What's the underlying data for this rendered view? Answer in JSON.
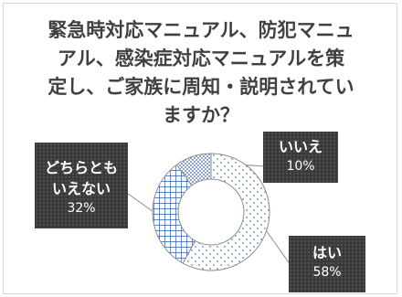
{
  "title_lines": [
    "緊急時対応マニュアル、防犯マニュ",
    "アル、感染症対応マニュアルを策",
    "定し、ご家族に周知・説明されてい",
    "ますか？"
  ],
  "chart_data": {
    "type": "pie",
    "variant": "doughnut",
    "title": "緊急時対応マニュアル、防犯マニュアル、感染症対応マニュアルを策定し、ご家族に周知・説明されていますか？",
    "categories": [
      "はい",
      "どちらともいえない",
      "いいえ"
    ],
    "values": [
      58,
      32,
      10
    ],
    "unit": "%",
    "start_angle_deg": 0,
    "direction": "clockwise",
    "slices": [
      {
        "label_lines": [
          "はい"
        ],
        "value": 58,
        "display": "58%",
        "pattern": "sparse-dots",
        "color": "#5b7fbf"
      },
      {
        "label_lines": [
          "どちらとも",
          "いえない"
        ],
        "value": 32,
        "display": "32%",
        "pattern": "grid",
        "color": "#2e5ea9"
      },
      {
        "label_lines": [
          "いいえ"
        ],
        "value": 10,
        "display": "10%",
        "pattern": "dense-dots",
        "color": "#3b64ad"
      }
    ]
  }
}
